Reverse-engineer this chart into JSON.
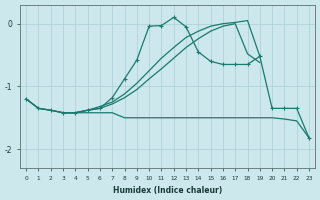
{
  "xlabel": "Humidex (Indice chaleur)",
  "bg_color": "#cce8ec",
  "line_color": "#1a7a6e",
  "grid_color": "#aacdd4",
  "curve_marked_x": [
    0,
    1,
    2,
    3,
    4,
    5,
    6,
    7,
    8,
    9,
    10,
    11,
    12,
    13,
    14,
    15,
    16,
    17,
    18,
    19,
    20,
    21,
    22,
    23
  ],
  "curve_marked_y": [
    -1.2,
    -1.35,
    -1.38,
    -1.42,
    -1.42,
    -1.38,
    -1.35,
    -1.18,
    -0.88,
    -0.58,
    -0.04,
    -0.03,
    0.1,
    -0.05,
    -0.45,
    -0.6,
    -0.65,
    -0.65,
    -0.65,
    -0.52,
    -1.35,
    -1.35,
    -1.35,
    -1.82
  ],
  "curve_diag1_x": [
    0,
    1,
    2,
    3,
    4,
    5,
    6,
    7,
    8,
    9,
    10,
    11,
    12,
    13,
    14,
    15,
    16,
    17,
    18,
    19
  ],
  "curve_diag1_y": [
    -1.2,
    -1.35,
    -1.38,
    -1.42,
    -1.42,
    -1.38,
    -1.32,
    -1.25,
    -1.12,
    -0.95,
    -0.75,
    -0.55,
    -0.38,
    -0.22,
    -0.12,
    -0.04,
    0.0,
    0.02,
    0.05,
    -0.52
  ],
  "curve_diag2_x": [
    0,
    1,
    2,
    3,
    4,
    5,
    6,
    7,
    8,
    9,
    10,
    11,
    12,
    13,
    14,
    15,
    16,
    17,
    18,
    19
  ],
  "curve_diag2_y": [
    -1.2,
    -1.35,
    -1.38,
    -1.42,
    -1.42,
    -1.38,
    -1.35,
    -1.28,
    -1.18,
    -1.05,
    -0.88,
    -0.72,
    -0.55,
    -0.38,
    -0.24,
    -0.12,
    -0.04,
    0.0,
    -0.48,
    -0.62
  ],
  "curve_flat_x": [
    3,
    4,
    5,
    6,
    7,
    8,
    9,
    10,
    11,
    12,
    13,
    14,
    15,
    16,
    17,
    18,
    19,
    20,
    21,
    22,
    23
  ],
  "curve_flat_y": [
    -1.42,
    -1.42,
    -1.42,
    -1.42,
    -1.42,
    -1.5,
    -1.5,
    -1.5,
    -1.5,
    -1.5,
    -1.5,
    -1.5,
    -1.5,
    -1.5,
    -1.5,
    -1.5,
    -1.5,
    -1.5,
    -1.52,
    -1.55,
    -1.82
  ],
  "ylim": [
    -2.3,
    0.3
  ],
  "xlim": [
    -0.5,
    23.5
  ]
}
